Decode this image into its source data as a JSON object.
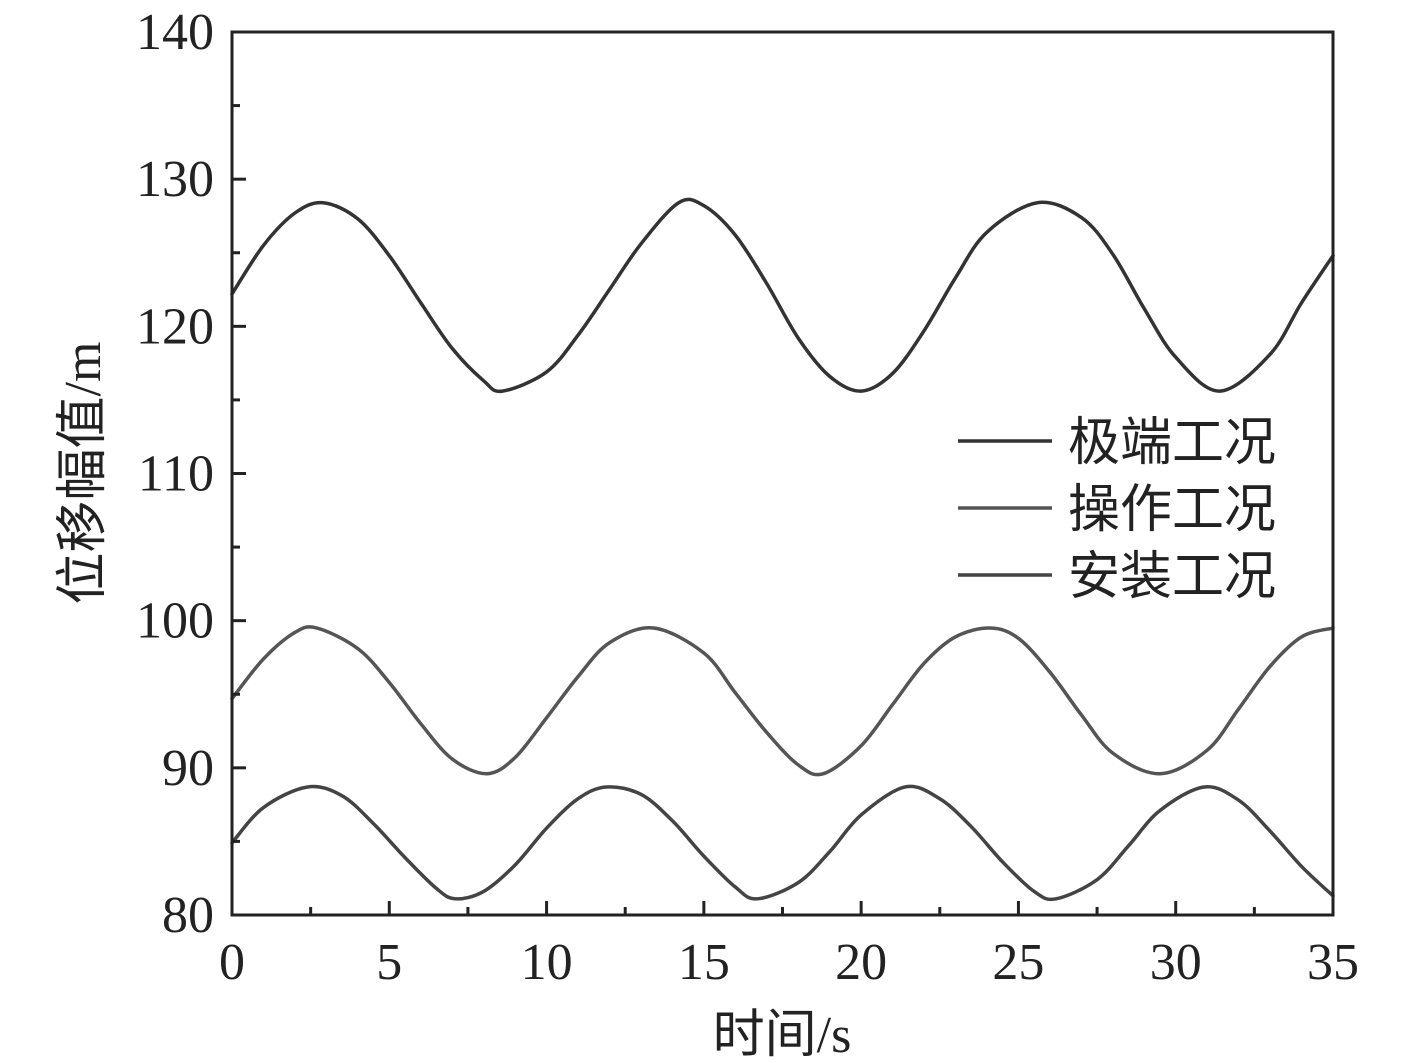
{
  "chart_data": {
    "type": "line",
    "title": "",
    "xlabel": "时间/s",
    "ylabel": "位移幅值/m",
    "xlim": [
      0,
      35
    ],
    "ylim": [
      80,
      140
    ],
    "xticks": [
      0,
      5,
      10,
      15,
      20,
      25,
      30,
      35
    ],
    "xtick_labels": [
      "0",
      "5",
      "10",
      "15",
      "20",
      "25",
      "30",
      "35"
    ],
    "yticks": [
      80,
      90,
      100,
      110,
      120,
      130,
      140
    ],
    "ytick_labels": [
      "80",
      "90",
      "100",
      "110",
      "120",
      "130",
      "140"
    ],
    "grid": false,
    "legend_position": "right",
    "series": [
      {
        "name": "极端工况",
        "color": "#333333",
        "x": [
          0,
          1,
          2,
          2.9,
          4,
          5,
          6,
          7,
          8,
          8.6,
          10,
          11,
          12,
          13,
          14.2,
          15,
          16,
          17,
          18,
          19,
          20,
          21,
          22,
          23,
          24,
          25.6,
          27,
          28,
          29,
          30,
          31.4,
          33,
          34,
          35
        ],
        "y": [
          122.2,
          125.5,
          127.7,
          128.4,
          127.3,
          124.8,
          121.6,
          118.5,
          116.3,
          115.6,
          116.9,
          119.4,
          122.5,
          125.6,
          128.4,
          128.2,
          126.2,
          122.9,
          119.2,
          116.6,
          115.6,
          116.8,
          119.7,
          123.3,
          126.4,
          128.4,
          127.4,
          124.9,
          121.2,
          117.9,
          115.6,
          118.1,
          121.6,
          124.8
        ]
      },
      {
        "name": "操作工况",
        "color": "#555555",
        "x": [
          0,
          1,
          2,
          2.7,
          4,
          5,
          6,
          7,
          8.1,
          9,
          10,
          11,
          12,
          13.4,
          15,
          16,
          17,
          18,
          18.8,
          20,
          21,
          22,
          23,
          24.1,
          25,
          26,
          27,
          28,
          29.5,
          31,
          32,
          33,
          34,
          35
        ],
        "y": [
          94.7,
          97.4,
          99.2,
          99.5,
          98.1,
          95.8,
          93.0,
          90.6,
          89.6,
          90.7,
          93.4,
          96.2,
          98.5,
          99.5,
          97.8,
          95.1,
          92.4,
          90.2,
          89.6,
          91.5,
          94.3,
          97.1,
          98.9,
          99.5,
          98.8,
          96.5,
          93.6,
          91.0,
          89.6,
          91.2,
          94.0,
          96.9,
          98.9,
          99.5
        ]
      },
      {
        "name": "安装工况",
        "color": "#444444",
        "x": [
          0,
          1,
          2.4,
          3.5,
          4.5,
          5.5,
          6.5,
          7.1,
          8,
          9,
          10,
          11,
          11.9,
          13,
          14,
          15,
          16,
          16.7,
          18,
          19,
          20,
          21.4,
          22.5,
          23.5,
          24.5,
          25.5,
          26.2,
          27.5,
          28.5,
          29.5,
          30.9,
          32,
          33,
          34,
          35
        ],
        "y": [
          84.9,
          87.3,
          88.7,
          88.1,
          86.2,
          83.9,
          81.8,
          81.1,
          81.6,
          83.4,
          85.9,
          87.9,
          88.7,
          88.2,
          86.4,
          84.0,
          81.9,
          81.1,
          82.2,
          84.3,
          86.8,
          88.7,
          87.9,
          86.0,
          83.6,
          81.6,
          81.1,
          82.4,
          84.7,
          87.1,
          88.7,
          87.8,
          85.7,
          83.3,
          81.3
        ]
      }
    ]
  }
}
